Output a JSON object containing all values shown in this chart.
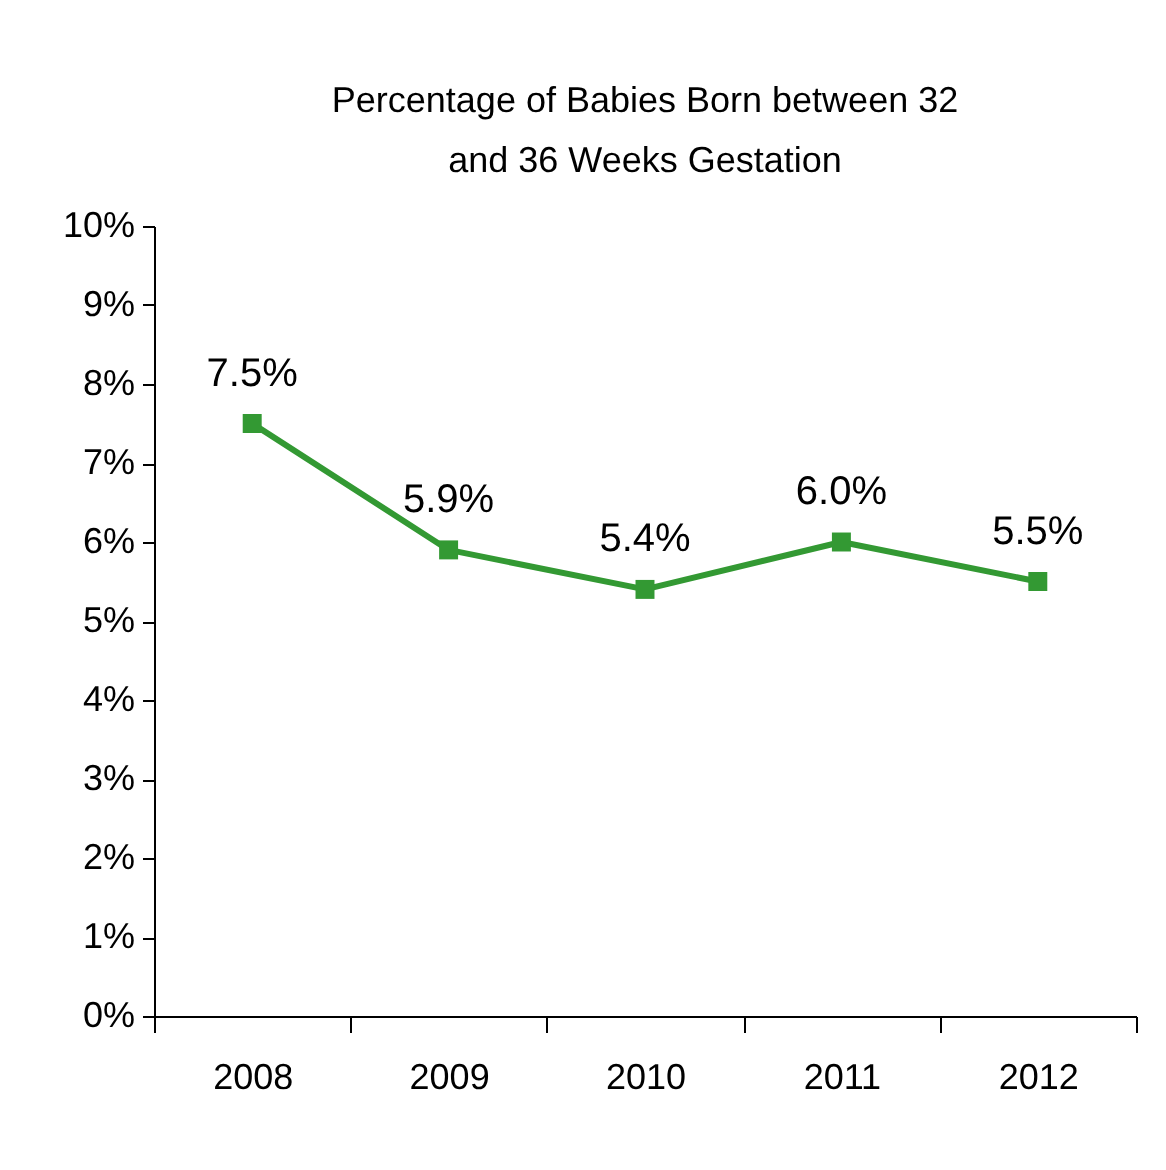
{
  "chart_data": {
    "type": "line",
    "title": "Percentage of Babies Born between 32 and 36 Weeks Gestation",
    "categories": [
      "2008",
      "2009",
      "2010",
      "2011",
      "2012"
    ],
    "series": [
      {
        "color": "#339933",
        "values": [
          7.5,
          5.9,
          5.4,
          6.0,
          5.5
        ],
        "value_labels": [
          "7.5%",
          "5.9%",
          "5.4%",
          "6.0%",
          "5.5%"
        ]
      }
    ],
    "ylim": [
      0,
      10
    ],
    "yticks": [
      {
        "value": 0,
        "label": "0%"
      },
      {
        "value": 1,
        "label": "1%"
      },
      {
        "value": 2,
        "label": "2%"
      },
      {
        "value": 3,
        "label": "3%"
      },
      {
        "value": 4,
        "label": "4%"
      },
      {
        "value": 5,
        "label": "5%"
      },
      {
        "value": 6,
        "label": "6%"
      },
      {
        "value": 7,
        "label": "7%"
      },
      {
        "value": 8,
        "label": "8%"
      },
      {
        "value": 9,
        "label": "9%"
      },
      {
        "value": 10,
        "label": "10%"
      }
    ],
    "marker": "square",
    "grid": false
  }
}
